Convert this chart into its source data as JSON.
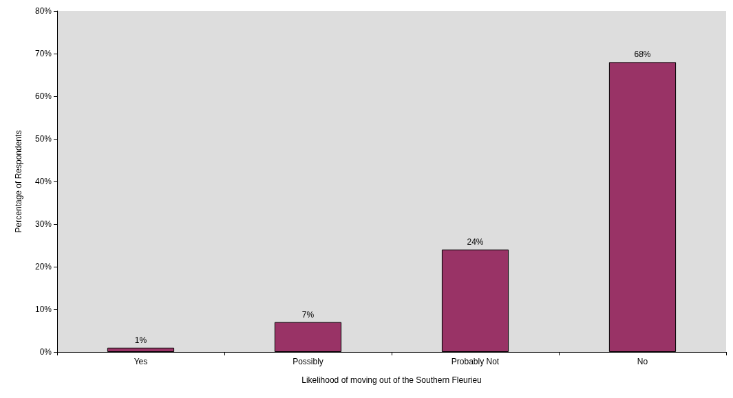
{
  "chart_data": {
    "type": "bar",
    "xlabel": "Likelihood of moving out of the Southern Fleurieu",
    "ylabel": "Percentage of Respondents",
    "categories": [
      "Yes",
      "Possibly",
      "Probably Not",
      "No"
    ],
    "values": [
      1,
      7,
      24,
      68
    ],
    "value_labels": [
      "1%",
      "7%",
      "24%",
      "68%"
    ],
    "color": "#993366",
    "ylim": [
      0,
      80
    ],
    "yticks": [
      {
        "value": 0,
        "label": "0%"
      },
      {
        "value": 10,
        "label": "10%"
      },
      {
        "value": 20,
        "label": "20%"
      },
      {
        "value": 30,
        "label": "30%"
      },
      {
        "value": 40,
        "label": "40%"
      },
      {
        "value": 50,
        "label": "50%"
      },
      {
        "value": 60,
        "label": "60%"
      },
      {
        "value": 70,
        "label": "70%"
      },
      {
        "value": 80,
        "label": "80%"
      }
    ],
    "grid": false
  }
}
